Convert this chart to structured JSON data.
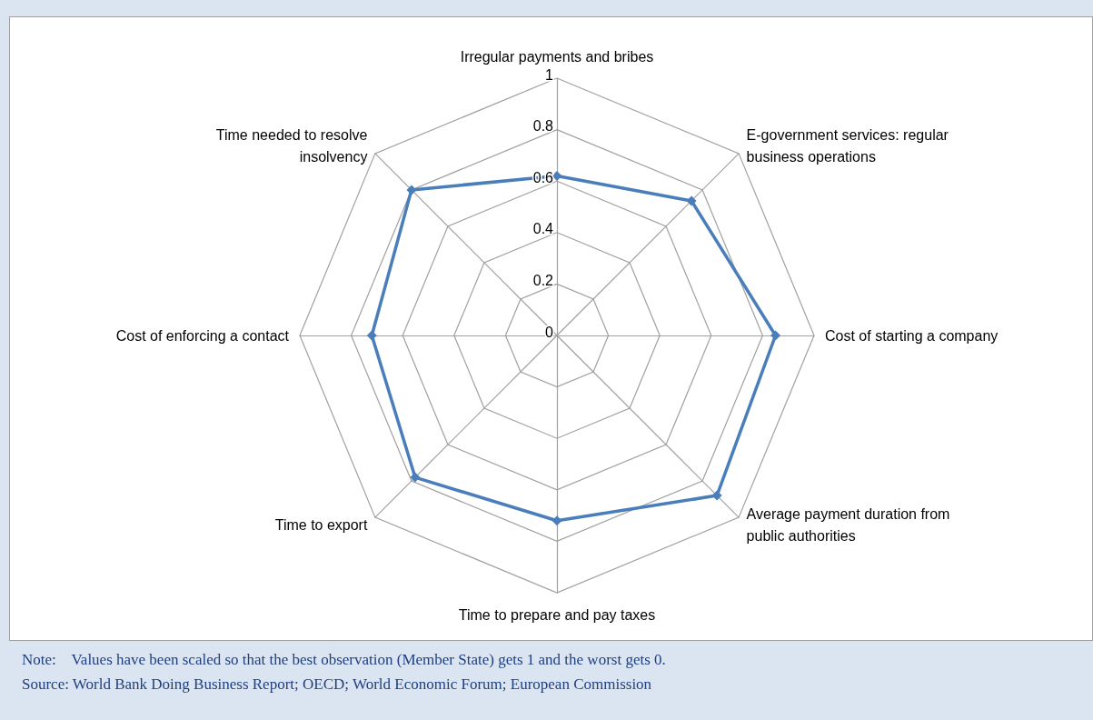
{
  "chart_data": {
    "type": "radar",
    "categories": [
      "Irregular payments and bribes",
      "E-government services: regular business operations",
      "Cost of starting a company",
      "Average payment duration from public authorities",
      "Time to prepare and pay taxes",
      "Time to export",
      "Cost of enforcing a contact",
      "Time needed to resolve insolvency"
    ],
    "series": [
      {
        "color": "#4a7ebb",
        "values": [
          0.62,
          0.74,
          0.85,
          0.88,
          0.72,
          0.78,
          0.72,
          0.8
        ]
      }
    ],
    "ylim": [
      0,
      1
    ],
    "yticks": [
      0,
      0.2,
      0.4,
      0.6,
      0.8,
      1
    ],
    "grid": true,
    "marker": "diamond",
    "line_style": "solid",
    "annotations": [
      "Note:    Values have been scaled so that the best observation (Member State) gets 1 and the worst gets 0.",
      "Source: World Bank Doing Business Report; OECD; World Economic Forum; European Commission"
    ]
  }
}
